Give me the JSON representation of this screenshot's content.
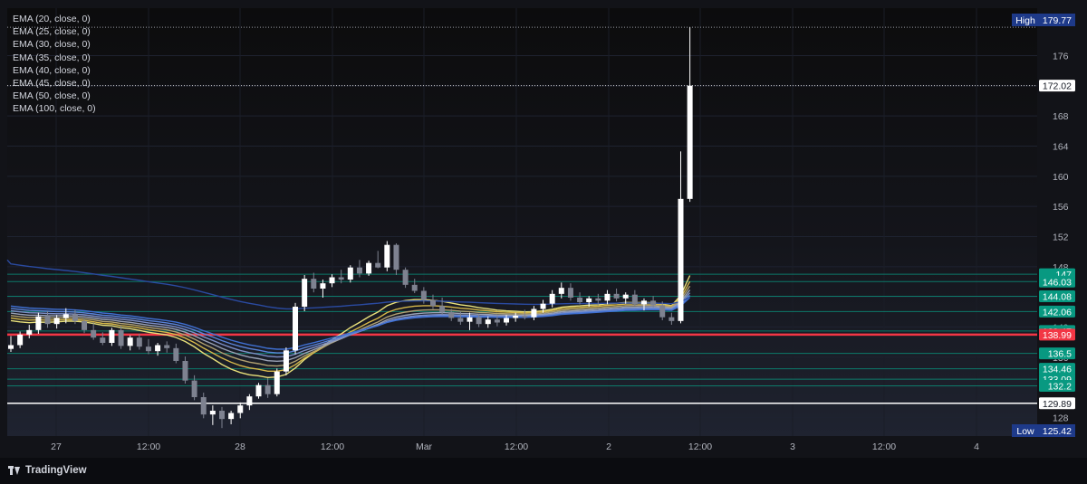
{
  "app": {
    "brand": "TradingView",
    "brand_icon": "tradingview-logo-icon"
  },
  "legend": [
    "EMA (20, close, 0)",
    "EMA (25, close, 0)",
    "EMA (30, close, 0)",
    "EMA (35, close, 0)",
    "EMA (40, close, 0)",
    "EMA (45, close, 0)",
    "EMA (50, close, 0)",
    "EMA (100, close, 0)"
  ],
  "chart_data": {
    "type": "candlestick",
    "ylim": [
      126,
      180
    ],
    "y_ticks": [
      128,
      132,
      136,
      140,
      144,
      148,
      152,
      156,
      160,
      164,
      168,
      172,
      176
    ],
    "x_ticks": [
      "27",
      "12:00",
      "28",
      "12:00",
      "Mar",
      "12:00",
      "2",
      "12:00",
      "3",
      "12:00",
      "4"
    ],
    "high": {
      "label": "High",
      "value": "179.77"
    },
    "low": {
      "label": "Low",
      "value": "125.42"
    },
    "last_price": "172.02",
    "horizontal_levels": [
      {
        "value": 147,
        "label": "147",
        "color": "#089981"
      },
      {
        "value": 146.03,
        "label": "146.03",
        "color": "#089981"
      },
      {
        "value": 144.08,
        "label": "144.08",
        "color": "#089981"
      },
      {
        "value": 142.06,
        "label": "142.06",
        "color": "#089981"
      },
      {
        "value": 139.47,
        "label": "139.47",
        "color": "#089981"
      },
      {
        "value": 138.99,
        "label": "138.99",
        "color": "#f23645"
      },
      {
        "value": 136.5,
        "label": "136.5",
        "color": "#089981"
      },
      {
        "value": 134.46,
        "label": "134.46",
        "color": "#089981"
      },
      {
        "value": 133.09,
        "label": "133.09",
        "color": "#089981"
      },
      {
        "value": 132.2,
        "label": "132.2",
        "color": "#089981"
      },
      {
        "value": 129.89,
        "label": "129.89",
        "color": "#ffffff"
      }
    ],
    "candles": [
      [
        137.1,
        138.8,
        136.7,
        137.6
      ],
      [
        137.6,
        139.4,
        137.2,
        139.0
      ],
      [
        139.0,
        140.3,
        138.5,
        139.6
      ],
      [
        139.6,
        141.9,
        139.1,
        141.4
      ],
      [
        141.4,
        142.1,
        139.9,
        140.4
      ],
      [
        140.4,
        141.6,
        139.8,
        141.2
      ],
      [
        141.2,
        142.5,
        140.5,
        141.7
      ],
      [
        141.7,
        142.3,
        140.4,
        140.8
      ],
      [
        140.8,
        141.2,
        139.2,
        139.6
      ],
      [
        139.6,
        140.6,
        138.3,
        138.6
      ],
      [
        138.6,
        139.3,
        137.6,
        137.9
      ],
      [
        137.9,
        139.9,
        137.5,
        139.6
      ],
      [
        139.6,
        140.2,
        137.1,
        137.5
      ],
      [
        137.5,
        138.9,
        136.9,
        138.6
      ],
      [
        138.6,
        139.1,
        137.0,
        137.4
      ],
      [
        137.4,
        138.4,
        136.4,
        136.8
      ],
      [
        136.8,
        137.9,
        136.2,
        137.6
      ],
      [
        137.6,
        138.1,
        136.6,
        137.2
      ],
      [
        137.2,
        137.8,
        135.2,
        135.5
      ],
      [
        135.5,
        136.1,
        132.5,
        132.9
      ],
      [
        132.9,
        133.6,
        130.3,
        130.7
      ],
      [
        130.7,
        131.3,
        127.9,
        128.4
      ],
      [
        128.4,
        129.6,
        127.0,
        128.9
      ],
      [
        128.9,
        129.4,
        126.6,
        127.8
      ],
      [
        127.8,
        128.9,
        127.1,
        128.6
      ],
      [
        128.6,
        130.0,
        127.9,
        129.6
      ],
      [
        129.6,
        131.1,
        129.0,
        130.8
      ],
      [
        130.8,
        132.6,
        130.5,
        132.3
      ],
      [
        132.3,
        133.2,
        130.6,
        131.1
      ],
      [
        131.1,
        134.5,
        130.8,
        134.1
      ],
      [
        134.1,
        137.3,
        133.6,
        136.9
      ],
      [
        136.9,
        143.2,
        136.4,
        142.7
      ],
      [
        142.7,
        146.9,
        142.1,
        146.4
      ],
      [
        146.4,
        147.2,
        144.6,
        145.1
      ],
      [
        145.1,
        146.3,
        143.9,
        145.8
      ],
      [
        145.8,
        147.0,
        145.3,
        146.6
      ],
      [
        146.6,
        147.6,
        145.8,
        146.3
      ],
      [
        146.3,
        148.2,
        145.9,
        147.9
      ],
      [
        147.9,
        148.9,
        146.6,
        147.1
      ],
      [
        147.1,
        148.8,
        146.8,
        148.5
      ],
      [
        148.5,
        150.1,
        147.8,
        147.9
      ],
      [
        147.9,
        151.4,
        147.4,
        150.9
      ],
      [
        150.9,
        151.1,
        146.9,
        147.6
      ],
      [
        147.6,
        147.9,
        145.2,
        145.6
      ],
      [
        145.6,
        146.4,
        144.5,
        144.8
      ],
      [
        144.8,
        145.3,
        143.1,
        143.6
      ],
      [
        143.6,
        144.3,
        142.4,
        142.8
      ],
      [
        142.8,
        143.9,
        141.6,
        142.0
      ],
      [
        142.0,
        142.4,
        140.8,
        141.2
      ],
      [
        141.2,
        142.1,
        140.3,
        140.7
      ],
      [
        140.7,
        141.9,
        139.6,
        141.3
      ],
      [
        141.3,
        141.7,
        140.0,
        140.4
      ],
      [
        140.4,
        141.4,
        139.9,
        141.0
      ],
      [
        141.0,
        141.5,
        140.1,
        140.6
      ],
      [
        140.6,
        141.6,
        140.2,
        141.2
      ],
      [
        141.2,
        141.9,
        140.7,
        141.5
      ],
      [
        141.5,
        142.3,
        141.0,
        141.3
      ],
      [
        141.3,
        142.8,
        140.9,
        142.4
      ],
      [
        142.4,
        143.6,
        141.9,
        143.1
      ],
      [
        143.1,
        144.9,
        142.6,
        144.4
      ],
      [
        144.4,
        145.9,
        143.8,
        145.2
      ],
      [
        145.2,
        145.8,
        143.5,
        143.9
      ],
      [
        143.9,
        144.6,
        143.0,
        143.3
      ],
      [
        143.3,
        144.1,
        142.7,
        143.8
      ],
      [
        143.8,
        144.4,
        142.9,
        143.5
      ],
      [
        143.5,
        144.9,
        143.0,
        144.4
      ],
      [
        144.4,
        145.1,
        143.4,
        143.8
      ],
      [
        143.8,
        144.6,
        143.1,
        144.3
      ],
      [
        144.3,
        144.9,
        142.8,
        143.0
      ],
      [
        143.0,
        143.8,
        142.2,
        143.5
      ],
      [
        143.5,
        144.1,
        142.6,
        142.9
      ],
      [
        142.9,
        143.4,
        140.9,
        141.3
      ],
      [
        141.3,
        141.9,
        140.3,
        140.8
      ],
      [
        140.8,
        163.3,
        140.5,
        157.0
      ],
      [
        157.0,
        179.77,
        156.6,
        172.02
      ]
    ],
    "series": [
      {
        "name": "EMA (20, close, 0)",
        "color": "#e8e07a",
        "period": 20
      },
      {
        "name": "EMA (25, close, 0)",
        "color": "#d6b84a",
        "period": 25
      },
      {
        "name": "EMA (30, close, 0)",
        "color": "#b0a070",
        "period": 30
      },
      {
        "name": "EMA (35, close, 0)",
        "color": "#9aa2b5",
        "period": 35
      },
      {
        "name": "EMA (40, close, 0)",
        "color": "#7d8fc7",
        "period": 40
      },
      {
        "name": "EMA (45, close, 0)",
        "color": "#5a83d8",
        "period": 45
      },
      {
        "name": "EMA (50, close, 0)",
        "color": "#3f6fd1",
        "period": 50
      },
      {
        "name": "EMA (100, close, 0)",
        "color": "#2a4aa0",
        "period": 100
      }
    ]
  }
}
